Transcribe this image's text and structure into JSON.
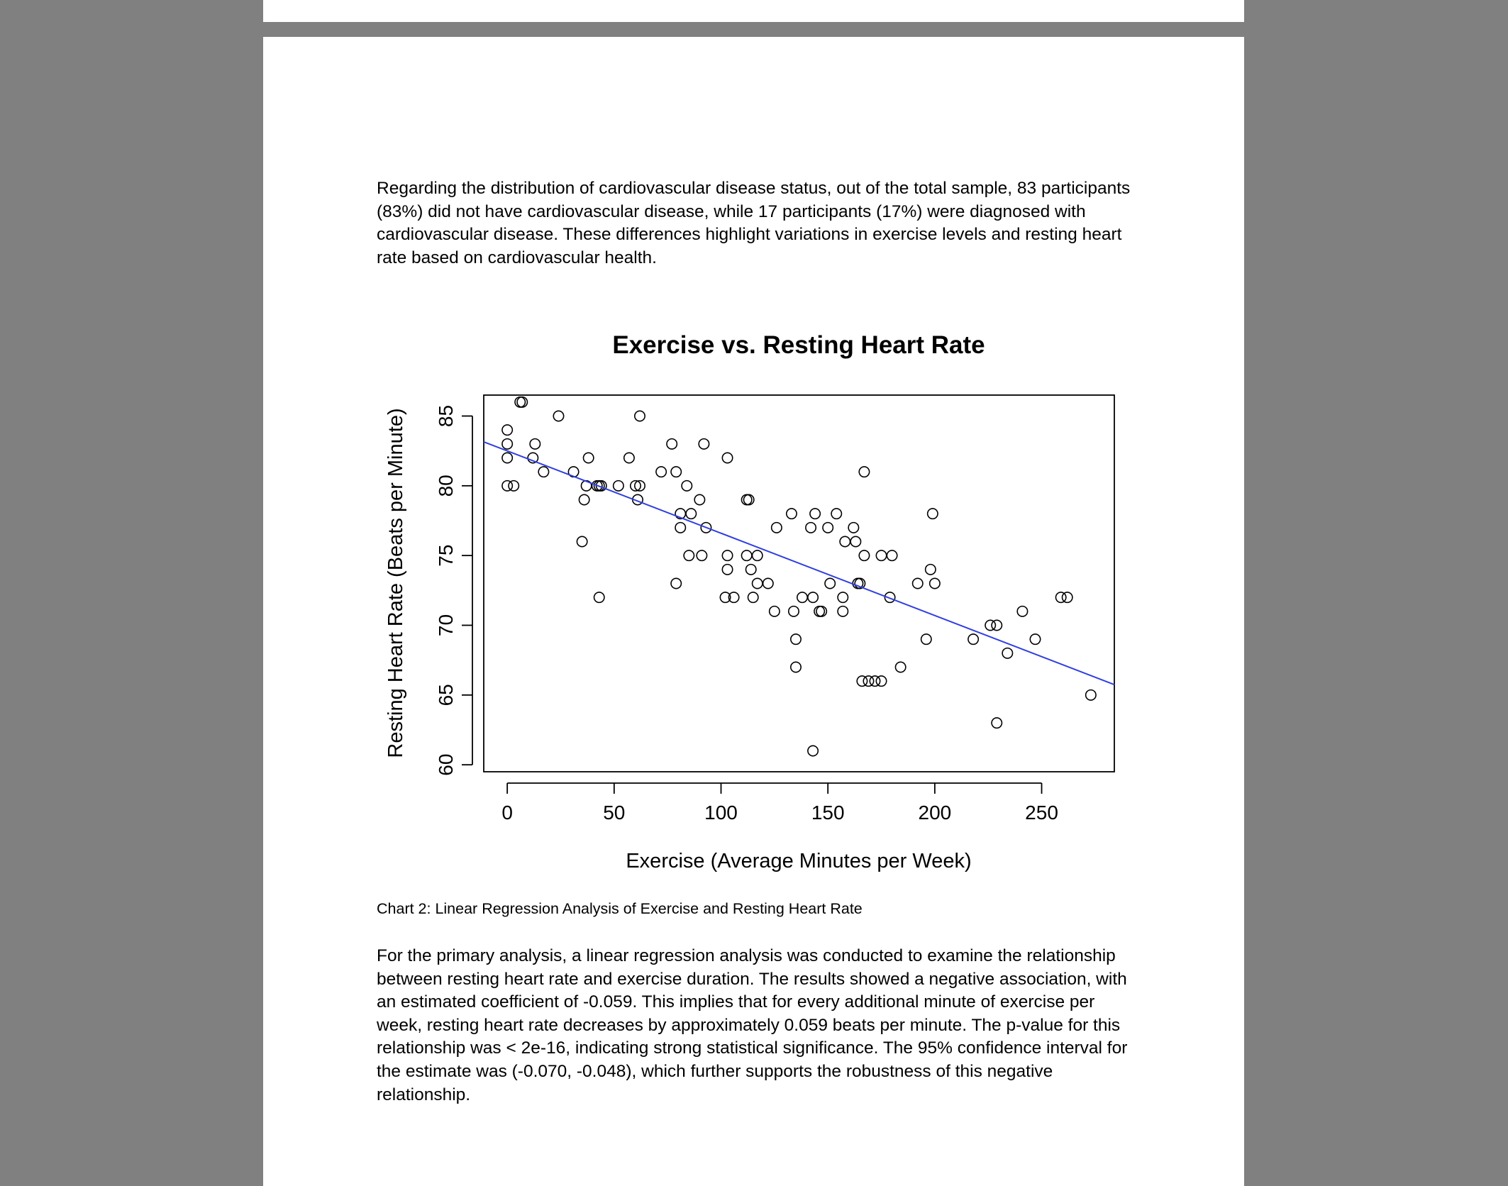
{
  "paragraphs": {
    "intro": "Regarding the distribution of cardiovascular disease status, out of the total sample, 83 participants (83%) did not have cardiovascular disease, while 17 participants (17%) were diagnosed with cardiovascular disease. These differences highlight variations in exercise levels and resting heart rate based on cardiovascular health.",
    "analysis": "For the primary analysis, a linear regression analysis was conducted to examine the relationship between resting heart rate and exercise duration. The results showed a negative association, with an estimated coefficient of -0.059. This implies that for every additional minute of exercise per week, resting heart rate decreases by approximately 0.059 beats per minute. The p-value for this relationship was < 2e-16, indicating strong statistical significance. The 95% confidence interval for the estimate was (-0.070, -0.048), which further supports the robustness of this negative relationship."
  },
  "caption": "Chart 2: Linear Regression Analysis of Exercise and Resting Heart Rate",
  "chart_data": {
    "type": "scatter",
    "title": "Exercise vs. Resting Heart Rate",
    "xlabel": "Exercise (Average Minutes per Week)",
    "ylabel": "Resting Heart Rate (Beats per Minute)",
    "xlim": [
      -11,
      284
    ],
    "ylim": [
      59.5,
      86.5
    ],
    "x_ticks": [
      "0",
      "50",
      "100",
      "150",
      "200",
      "250"
    ],
    "y_ticks": [
      "60",
      "65",
      "70",
      "75",
      "80",
      "85"
    ],
    "grid": false,
    "point_color": "#000000",
    "line_color": "#2f3fe0",
    "regression_line": {
      "intercept": 82.5,
      "slope": -0.059
    },
    "points": [
      [
        0,
        84
      ],
      [
        0,
        83
      ],
      [
        0,
        82
      ],
      [
        0,
        80
      ],
      [
        3,
        80
      ],
      [
        6,
        86
      ],
      [
        7,
        86
      ],
      [
        13,
        83
      ],
      [
        12,
        82
      ],
      [
        17,
        81
      ],
      [
        24,
        85
      ],
      [
        31,
        81
      ],
      [
        35,
        76
      ],
      [
        36,
        79
      ],
      [
        37,
        80
      ],
      [
        38,
        82
      ],
      [
        42,
        80
      ],
      [
        43,
        80
      ],
      [
        44,
        80
      ],
      [
        43,
        72
      ],
      [
        52,
        80
      ],
      [
        57,
        82
      ],
      [
        60,
        80
      ],
      [
        62,
        80
      ],
      [
        61,
        79
      ],
      [
        62,
        85
      ],
      [
        72,
        81
      ],
      [
        77,
        83
      ],
      [
        79,
        81
      ],
      [
        79,
        73
      ],
      [
        81,
        78
      ],
      [
        81,
        77
      ],
      [
        84,
        80
      ],
      [
        86,
        78
      ],
      [
        85,
        75
      ],
      [
        90,
        79
      ],
      [
        91,
        75
      ],
      [
        92,
        83
      ],
      [
        93,
        77
      ],
      [
        103,
        82
      ],
      [
        103,
        75
      ],
      [
        103,
        74
      ],
      [
        102,
        72
      ],
      [
        106,
        72
      ],
      [
        112,
        79
      ],
      [
        113,
        79
      ],
      [
        112,
        75
      ],
      [
        114,
        74
      ],
      [
        117,
        75
      ],
      [
        117,
        73
      ],
      [
        115,
        72
      ],
      [
        122,
        73
      ],
      [
        125,
        71
      ],
      [
        126,
        77
      ],
      [
        133,
        78
      ],
      [
        134,
        71
      ],
      [
        135,
        69
      ],
      [
        135,
        67
      ],
      [
        138,
        72
      ],
      [
        142,
        77
      ],
      [
        143,
        72
      ],
      [
        144,
        78
      ],
      [
        146,
        71
      ],
      [
        147,
        71
      ],
      [
        150,
        77
      ],
      [
        151,
        73
      ],
      [
        154,
        78
      ],
      [
        143,
        61
      ],
      [
        158,
        76
      ],
      [
        157,
        72
      ],
      [
        157,
        71
      ],
      [
        162,
        77
      ],
      [
        163,
        76
      ],
      [
        164,
        73
      ],
      [
        165,
        73
      ],
      [
        166,
        66
      ],
      [
        167,
        81
      ],
      [
        167,
        75
      ],
      [
        169,
        66
      ],
      [
        172,
        66
      ],
      [
        175,
        66
      ],
      [
        175,
        75
      ],
      [
        179,
        72
      ],
      [
        180,
        75
      ],
      [
        184,
        67
      ],
      [
        192,
        73
      ],
      [
        196,
        69
      ],
      [
        198,
        74
      ],
      [
        199,
        78
      ],
      [
        200,
        73
      ],
      [
        218,
        69
      ],
      [
        226,
        70
      ],
      [
        229,
        70
      ],
      [
        229,
        63
      ],
      [
        234,
        68
      ],
      [
        241,
        71
      ],
      [
        247,
        69
      ],
      [
        259,
        72
      ],
      [
        262,
        72
      ],
      [
        273,
        65
      ]
    ]
  }
}
